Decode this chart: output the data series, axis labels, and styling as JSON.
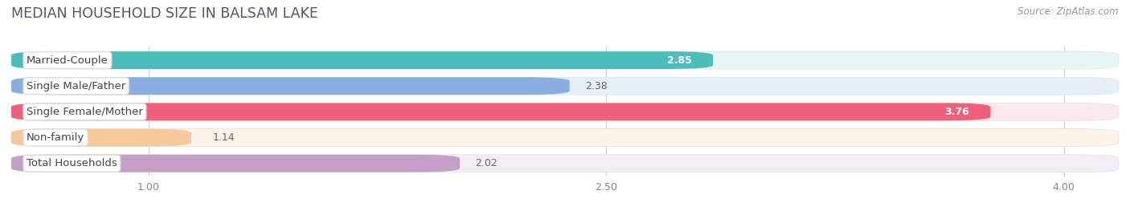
{
  "title": "MEDIAN HOUSEHOLD SIZE IN BALSAM LAKE",
  "source": "Source: ZipAtlas.com",
  "categories": [
    "Married-Couple",
    "Single Male/Father",
    "Single Female/Mother",
    "Non-family",
    "Total Households"
  ],
  "values": [
    2.85,
    2.38,
    3.76,
    1.14,
    2.02
  ],
  "bar_colors": [
    "#4dbdba",
    "#8aaee0",
    "#f0607a",
    "#f5c99a",
    "#c4a0c8"
  ],
  "bar_bg_colors": [
    "#e8f6f6",
    "#e8eef8",
    "#fce8ed",
    "#fdf3e7",
    "#f3edf6"
  ],
  "label_bg_color": "#ffffff",
  "xlim_left": 0.55,
  "xlim_right": 4.18,
  "xstart": 0.55,
  "xticks": [
    1.0,
    2.5,
    4.0
  ],
  "xtick_labels": [
    "1.00",
    "2.50",
    "4.00"
  ],
  "title_fontsize": 12.5,
  "label_fontsize": 9.5,
  "value_fontsize": 9,
  "bar_height": 0.68,
  "bar_gap": 0.32,
  "figure_bg": "#ffffff",
  "chart_bg": "#f5f5f5"
}
